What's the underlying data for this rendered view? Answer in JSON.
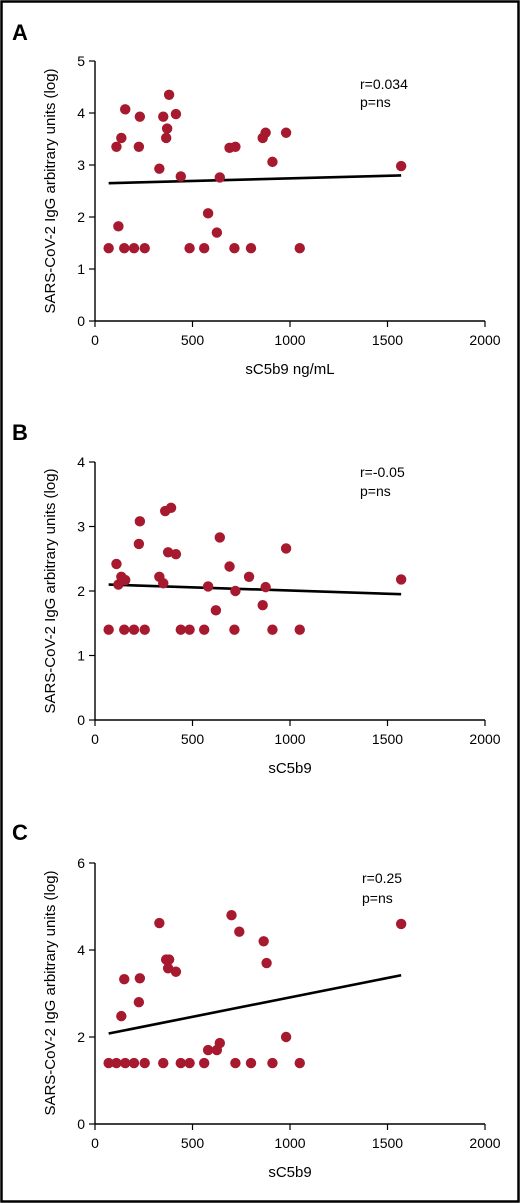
{
  "colors": {
    "point": "#a6192e",
    "line": "#000000"
  },
  "chart_data": [
    {
      "type": "scatter",
      "panel": "A",
      "xlabel": "sC5b9 ng/mL",
      "ylabel": "SARS-CoV-2 IgG arbitrary units (log)",
      "xlim": [
        0,
        2000
      ],
      "ylim": [
        0,
        5
      ],
      "xticks": [
        "0",
        "500",
        "1000",
        "1500",
        "2000"
      ],
      "yticks": [
        "0",
        "1",
        "2",
        "3",
        "4",
        "5"
      ],
      "annotations": [
        "r=0.034",
        "p=ns"
      ],
      "fit_line": [
        [
          70,
          2.65
        ],
        [
          1570,
          2.8
        ]
      ],
      "x": [
        70,
        110,
        120,
        135,
        150,
        155,
        200,
        225,
        230,
        255,
        330,
        350,
        365,
        370,
        380,
        415,
        440,
        485,
        560,
        580,
        625,
        640,
        690,
        715,
        720,
        800,
        860,
        875,
        910,
        980,
        1050,
        1570
      ],
      "y": [
        1.4,
        3.35,
        1.82,
        3.52,
        1.4,
        4.07,
        1.4,
        3.35,
        3.93,
        1.4,
        2.93,
        3.93,
        3.52,
        3.7,
        4.35,
        3.98,
        2.78,
        1.4,
        1.4,
        2.07,
        1.7,
        2.76,
        3.33,
        1.4,
        3.35,
        1.4,
        3.52,
        3.62,
        3.06,
        3.62,
        1.4,
        2.98
      ]
    },
    {
      "type": "scatter",
      "panel": "B",
      "xlabel": "sC5b9",
      "ylabel": "SARS-CoV-2 IgG arbitrary units (log)",
      "xlim": [
        0,
        2000
      ],
      "ylim": [
        0,
        4
      ],
      "xticks": [
        "0",
        "500",
        "1000",
        "1500",
        "2000"
      ],
      "yticks": [
        "0",
        "1",
        "2",
        "3",
        "4"
      ],
      "annotations": [
        "r=-0.05",
        "p=ns"
      ],
      "fit_line": [
        [
          70,
          2.1
        ],
        [
          1570,
          1.95
        ]
      ],
      "x": [
        70,
        110,
        120,
        135,
        150,
        155,
        200,
        225,
        230,
        255,
        330,
        350,
        360,
        375,
        390,
        415,
        440,
        485,
        560,
        580,
        620,
        640,
        690,
        715,
        720,
        790,
        860,
        875,
        910,
        980,
        1050,
        1570
      ],
      "y": [
        1.4,
        2.42,
        2.1,
        2.22,
        1.4,
        2.17,
        1.4,
        2.73,
        3.08,
        1.4,
        2.22,
        2.12,
        3.24,
        2.6,
        3.29,
        2.57,
        1.4,
        1.4,
        1.4,
        2.07,
        1.7,
        2.83,
        2.38,
        1.4,
        2.0,
        2.22,
        1.78,
        2.06,
        1.4,
        2.66,
        1.4,
        2.18
      ]
    },
    {
      "type": "scatter",
      "panel": "C",
      "xlabel": "sC5b9",
      "ylabel": "SARS-CoV-2 IgG arbitrary units (log)",
      "xlim": [
        0,
        2000
      ],
      "ylim": [
        0,
        6
      ],
      "xticks": [
        "0",
        "500",
        "1000",
        "1500",
        "2000"
      ],
      "yticks": [
        "0",
        "2",
        "4",
        "6"
      ],
      "annotations": [
        "r=0.25",
        "p=ns"
      ],
      "fit_line": [
        [
          70,
          2.08
        ],
        [
          1570,
          3.42
        ]
      ],
      "x": [
        70,
        110,
        135,
        150,
        155,
        200,
        225,
        230,
        255,
        330,
        350,
        365,
        375,
        380,
        415,
        440,
        485,
        560,
        580,
        625,
        640,
        700,
        720,
        740,
        800,
        865,
        880,
        910,
        980,
        1050,
        1570
      ],
      "y": [
        1.4,
        1.4,
        2.48,
        3.33,
        1.4,
        1.4,
        2.8,
        3.35,
        1.4,
        4.62,
        1.4,
        3.78,
        3.58,
        3.78,
        3.5,
        1.4,
        1.4,
        1.4,
        1.7,
        1.7,
        1.86,
        4.8,
        1.4,
        4.42,
        1.4,
        4.2,
        3.7,
        1.4,
        2.0,
        1.4,
        4.6
      ]
    }
  ]
}
